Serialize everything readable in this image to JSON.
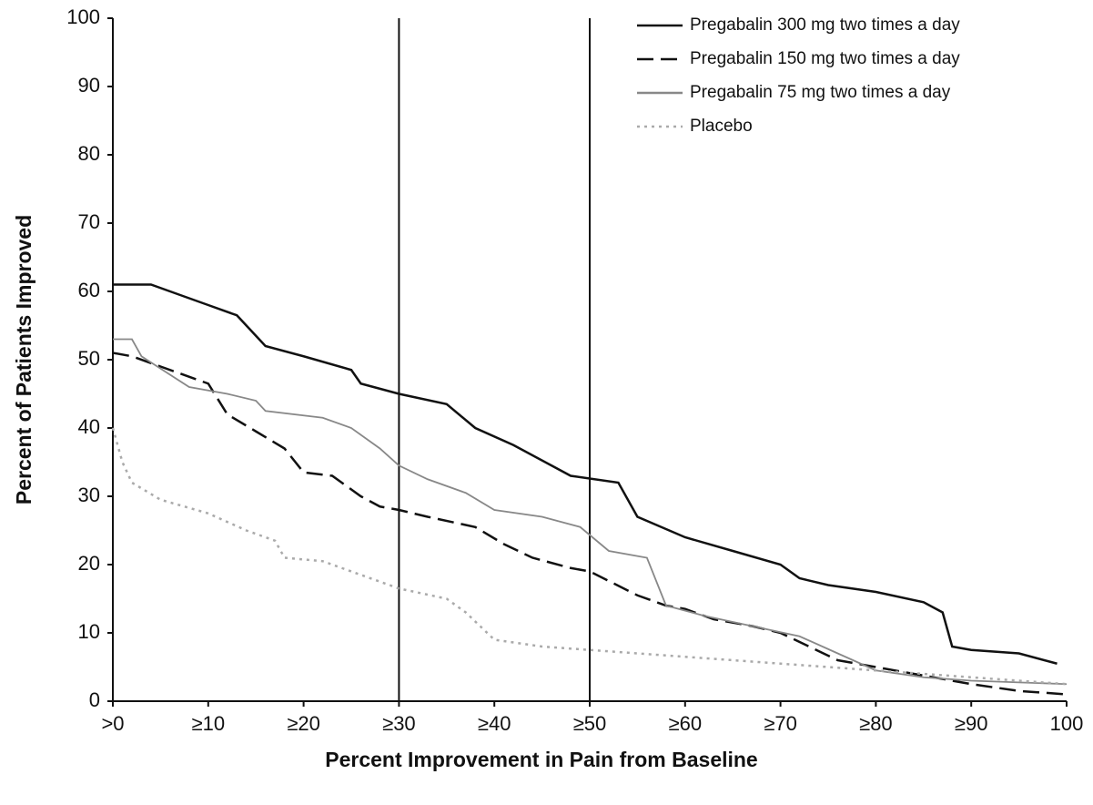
{
  "chart_data": {
    "type": "line",
    "xlabel": "Percent Improvement in Pain from Baseline",
    "ylabel": "Percent of Patients Improved",
    "xlim": [
      0,
      100
    ],
    "ylim": [
      0,
      100
    ],
    "xticks": [
      {
        "value": 0,
        "label": ">0"
      },
      {
        "value": 10,
        "label": "≥10"
      },
      {
        "value": 20,
        "label": "≥20"
      },
      {
        "value": 30,
        "label": "≥30"
      },
      {
        "value": 40,
        "label": "≥40"
      },
      {
        "value": 50,
        "label": "≥50"
      },
      {
        "value": 60,
        "label": "≥60"
      },
      {
        "value": 70,
        "label": "≥70"
      },
      {
        "value": 80,
        "label": "≥80"
      },
      {
        "value": 90,
        "label": "≥90"
      },
      100
    ],
    "yticks": [
      0,
      10,
      20,
      30,
      40,
      50,
      60,
      70,
      80,
      90,
      100
    ],
    "reference_lines": [
      30,
      50
    ],
    "legend": "upper right",
    "series": [
      {
        "name": "Pregabalin 300 mg two times a day",
        "color": "#111111",
        "dash": "solid",
        "x": [
          0,
          4,
          7,
          10,
          13,
          16,
          20,
          25,
          26,
          30,
          35,
          38,
          42,
          46,
          48,
          53,
          55,
          60,
          65,
          70,
          72,
          75,
          80,
          85,
          87,
          88,
          90,
          95,
          99
        ],
        "values": [
          61,
          61,
          59.5,
          58,
          56.5,
          52,
          50.5,
          48.5,
          46.5,
          45,
          43.5,
          40,
          37.5,
          34.5,
          33,
          32,
          27,
          24,
          22,
          20,
          18,
          17,
          16,
          14.5,
          13,
          8,
          7.5,
          7,
          5.5
        ]
      },
      {
        "name": "Pregabalin 150 mg two times a day",
        "color": "#111111",
        "dash": "dashed",
        "x": [
          0,
          2,
          5,
          10,
          12,
          15,
          18,
          20,
          23,
          26,
          28,
          30,
          33,
          38,
          41,
          44,
          48,
          50,
          55,
          58,
          60,
          63,
          67,
          70,
          73,
          76,
          80,
          86,
          90,
          95,
          100
        ],
        "values": [
          51,
          50.5,
          49,
          46.5,
          42,
          39.5,
          37,
          33.5,
          33,
          30,
          28.5,
          28,
          27,
          25.5,
          23,
          21,
          19.5,
          19,
          15.5,
          14,
          13.5,
          12,
          11,
          10,
          8,
          6,
          5,
          3.5,
          2.5,
          1.5,
          1
        ]
      },
      {
        "name": "Pregabalin 75 mg two times a day",
        "color": "#888888",
        "dash": "solid",
        "x": [
          0,
          2,
          3,
          8,
          12,
          15,
          16,
          22,
          25,
          28,
          30,
          33,
          37,
          40,
          45,
          49,
          52,
          56,
          58,
          62,
          67,
          72,
          76,
          80,
          85,
          90,
          100
        ],
        "values": [
          53,
          53,
          50.5,
          46,
          45,
          44,
          42.5,
          41.5,
          40,
          37,
          34.5,
          32.5,
          30.5,
          28,
          27,
          25.5,
          22,
          21,
          14,
          12.5,
          11,
          9.5,
          7,
          4.5,
          3.5,
          3,
          2.5
        ]
      },
      {
        "name": "Placebo",
        "color": "#aaaaaa",
        "dash": "dotted",
        "x": [
          0,
          1,
          2,
          5,
          10,
          14,
          17,
          18,
          22,
          26,
          30,
          35,
          37,
          40,
          45,
          50,
          55,
          60,
          65,
          70,
          75,
          80,
          85,
          90,
          100
        ],
        "values": [
          40,
          35,
          32,
          29.5,
          27.5,
          25,
          23.5,
          21,
          20.5,
          18.5,
          16.5,
          15,
          13,
          9,
          8,
          7.5,
          7,
          6.5,
          6,
          5.5,
          5,
          4.5,
          4,
          3.5,
          2.5
        ]
      }
    ]
  }
}
